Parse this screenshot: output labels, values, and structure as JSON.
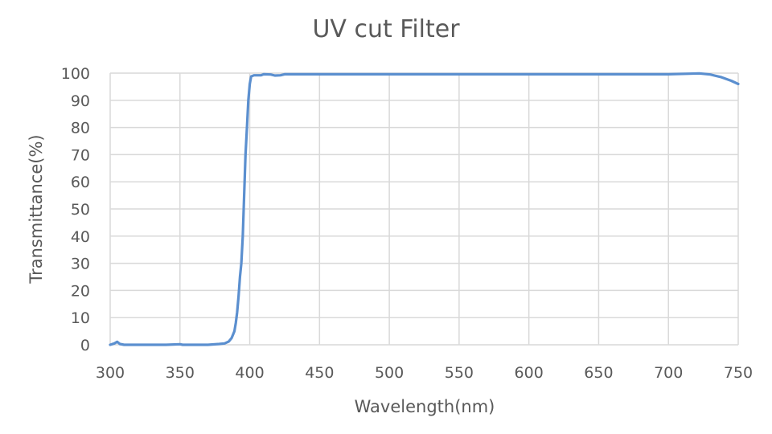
{
  "chart_data": {
    "type": "line",
    "title": "UV cut Filter",
    "xlabel": "Wavelength(nm)",
    "ylabel": "Transmittance(%)",
    "xlim": [
      300,
      750
    ],
    "ylim": [
      0,
      100
    ],
    "x_ticks": [
      "300",
      "350",
      "400",
      "450",
      "500",
      "550",
      "600",
      "650",
      "700",
      "750"
    ],
    "y_ticks": [
      "0",
      "10",
      "20",
      "30",
      "40",
      "50",
      "60",
      "70",
      "80",
      "90",
      "100"
    ],
    "grid": true,
    "legend": "none",
    "series": [
      {
        "color": "#5b8fcf",
        "points": [
          [
            300,
            0
          ],
          [
            303,
            0.5
          ],
          [
            305,
            1.1
          ],
          [
            307,
            0.3
          ],
          [
            310,
            0
          ],
          [
            320,
            0
          ],
          [
            340,
            0
          ],
          [
            350,
            0.2
          ],
          [
            352,
            0
          ],
          [
            370,
            0
          ],
          [
            378,
            0.3
          ],
          [
            382,
            0.5
          ],
          [
            385,
            1.2
          ],
          [
            387,
            2.5
          ],
          [
            389,
            5
          ],
          [
            390,
            8
          ],
          [
            391,
            12
          ],
          [
            392,
            18
          ],
          [
            393,
            25
          ],
          [
            394,
            30
          ],
          [
            395,
            40
          ],
          [
            396,
            55
          ],
          [
            397,
            70
          ],
          [
            398,
            80
          ],
          [
            399,
            90
          ],
          [
            400,
            96
          ],
          [
            401,
            98.8
          ],
          [
            403,
            99.2
          ],
          [
            408,
            99.2
          ],
          [
            410,
            99.6
          ],
          [
            415,
            99.5
          ],
          [
            418,
            99.1
          ],
          [
            422,
            99.2
          ],
          [
            425,
            99.6
          ],
          [
            450,
            99.6
          ],
          [
            500,
            99.6
          ],
          [
            550,
            99.6
          ],
          [
            600,
            99.6
          ],
          [
            650,
            99.6
          ],
          [
            700,
            99.6
          ],
          [
            715,
            99.8
          ],
          [
            722,
            99.9
          ],
          [
            730,
            99.5
          ],
          [
            738,
            98.5
          ],
          [
            745,
            97.2
          ],
          [
            750,
            96
          ]
        ]
      }
    ]
  }
}
